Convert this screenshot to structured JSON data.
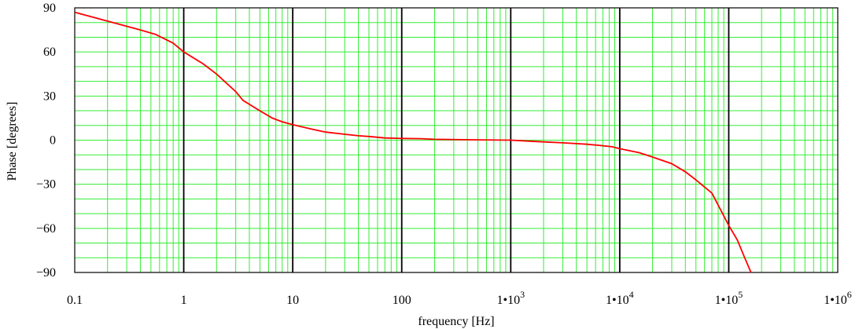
{
  "chart_data": {
    "type": "line",
    "xlabel": "frequency  [Hz]",
    "ylabel": "Phase  [degrees]",
    "x_scale": "log",
    "xlim": [
      0.1,
      1000000
    ],
    "ylim": [
      -90,
      90
    ],
    "grid": true,
    "colors": {
      "line": "#ff0000",
      "minor_grid": "#33ee33",
      "major_grid": "#000000",
      "frame": "#000000"
    },
    "x_ticks": [
      {
        "value": 0.1,
        "label": "0.1"
      },
      {
        "value": 1,
        "label": "1"
      },
      {
        "value": 10,
        "label": "10"
      },
      {
        "value": 100,
        "label": "100"
      },
      {
        "value": 1000,
        "label": "1•10",
        "exp": "3"
      },
      {
        "value": 10000,
        "label": "1•10",
        "exp": "4"
      },
      {
        "value": 100000,
        "label": "1•10",
        "exp": "5"
      },
      {
        "value": 1000000,
        "label": "1•10",
        "exp": "6"
      }
    ],
    "y_ticks": [
      {
        "value": 90,
        "label": "90"
      },
      {
        "value": 60,
        "label": "60"
      },
      {
        "value": 30,
        "label": "30"
      },
      {
        "value": 0,
        "label": "0"
      },
      {
        "value": -30,
        "label": "−30"
      },
      {
        "value": -60,
        "label": "−60"
      },
      {
        "value": -90,
        "label": "−90"
      }
    ],
    "series": [
      {
        "x": [
          0.1,
          0.2,
          0.4,
          0.55,
          0.8,
          1,
          1.5,
          2,
          3,
          3.5,
          5,
          6.5,
          8,
          10,
          15,
          20,
          30,
          40,
          50,
          70,
          100,
          150,
          200,
          500,
          1000,
          1500,
          2000,
          3000,
          5000,
          7000,
          8500,
          10000,
          15000,
          20000,
          30000,
          40000,
          50000,
          70000,
          100000,
          120000,
          140000,
          160000
        ],
        "y": [
          87,
          81,
          75,
          72,
          66,
          60,
          52,
          45,
          33,
          27,
          20,
          15,
          12.5,
          10.5,
          7.5,
          5.5,
          4,
          3,
          2.5,
          1.5,
          1.2,
          1,
          0.6,
          0.2,
          0,
          -0.7,
          -1.2,
          -1.8,
          -2.8,
          -3.8,
          -4.5,
          -5.8,
          -8.5,
          -11.5,
          -16,
          -21.5,
          -27,
          -36,
          -58,
          -68,
          -80,
          -90
        ]
      }
    ]
  }
}
